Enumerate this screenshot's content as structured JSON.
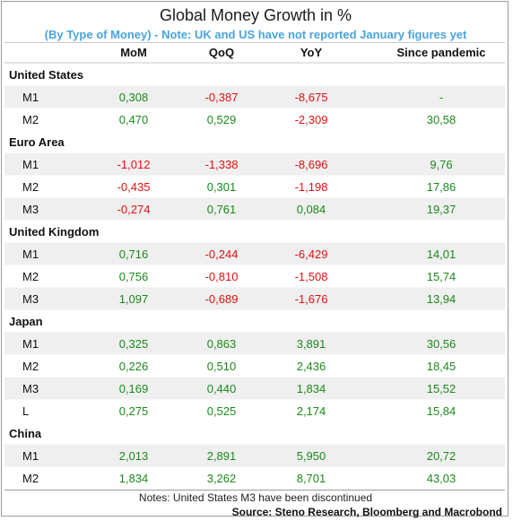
{
  "title": "Global Money Growth in %",
  "subtitle": "(By Type of Money) - Note: UK and US have not reported January figures yet",
  "notes": "Notes: United States M3 have been discontinued",
  "source": "Source: Steno Research, Bloomberg and Macrobond",
  "colors": {
    "positive": "#1a8a1a",
    "negative": "#e01010",
    "neutral": "#1a8a1a",
    "stripe": "#efefef",
    "subtitle": "#4aa3df"
  },
  "chart_data": {
    "type": "table",
    "title": "Global Money Growth in %",
    "subtitle": "(By Type of Money) - Note: UK and US have not reported January figures yet",
    "columns": [
      "MoM",
      "QoQ",
      "YoY",
      "Since pandemic"
    ],
    "groups": [
      {
        "name": "United States",
        "rows": [
          {
            "label": "M1",
            "values": [
              "0,308",
              "-0,387",
              "-8,675",
              "-"
            ]
          },
          {
            "label": "M2",
            "values": [
              "0,470",
              "0,529",
              "-2,309",
              "30,58"
            ]
          }
        ]
      },
      {
        "name": "Euro Area",
        "rows": [
          {
            "label": "M1",
            "values": [
              "-1,012",
              "-1,338",
              "-8,696",
              "9,76"
            ]
          },
          {
            "label": "M2",
            "values": [
              "-0,435",
              "0,301",
              "-1,198",
              "17,86"
            ]
          },
          {
            "label": "M3",
            "values": [
              "-0,274",
              "0,761",
              "0,084",
              "19,37"
            ]
          }
        ]
      },
      {
        "name": "United Kingdom",
        "rows": [
          {
            "label": "M1",
            "values": [
              "0,716",
              "-0,244",
              "-6,429",
              "14,01"
            ]
          },
          {
            "label": "M2",
            "values": [
              "0,756",
              "-0,810",
              "-1,508",
              "15,74"
            ]
          },
          {
            "label": "M3",
            "values": [
              "1,097",
              "-0,689",
              "-1,676",
              "13,94"
            ]
          }
        ]
      },
      {
        "name": "Japan",
        "rows": [
          {
            "label": "M1",
            "values": [
              "0,325",
              "0,863",
              "3,891",
              "30,56"
            ]
          },
          {
            "label": "M2",
            "values": [
              "0,226",
              "0,510",
              "2,436",
              "18,45"
            ]
          },
          {
            "label": "M3",
            "values": [
              "0,169",
              "0,440",
              "1,834",
              "15,52"
            ]
          },
          {
            "label": "L",
            "values": [
              "0,275",
              "0,525",
              "2,174",
              "15,84"
            ]
          }
        ]
      },
      {
        "name": "China",
        "rows": [
          {
            "label": "M1",
            "values": [
              "2,013",
              "2,891",
              "5,950",
              "20,72"
            ]
          },
          {
            "label": "M2",
            "values": [
              "1,834",
              "3,262",
              "8,701",
              "43,03"
            ]
          }
        ]
      }
    ]
  }
}
